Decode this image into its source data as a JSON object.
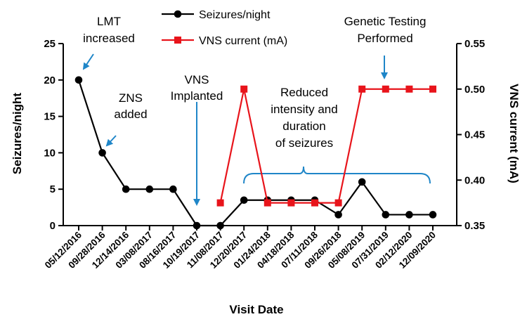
{
  "chart_data": {
    "type": "line",
    "categories": [
      "05/12/2016",
      "09/28/2016",
      "12/14/2016",
      "03/08/2017",
      "08/16/2017",
      "10/19/2017",
      "11/08/2017",
      "12/20/2017",
      "01/24/2018",
      "04/18/2018",
      "07/11/2018",
      "09/26/2018",
      "05/08/2019",
      "07/31/2019",
      "02/12/2020",
      "12/09/2020"
    ],
    "xlabel": "Visit Date",
    "ylabel": "Seizures/night",
    "y2label": "VNS current (mA)",
    "ylim": [
      0,
      25
    ],
    "yticks": [
      "0",
      "5",
      "10",
      "15",
      "20",
      "25"
    ],
    "y2lim": [
      0.35,
      0.55
    ],
    "y2ticks": [
      "0.35",
      "0.40",
      "0.45",
      "0.50",
      "0.55"
    ],
    "series": [
      {
        "name": "Seizures/night",
        "axis": "left",
        "color": "#000000",
        "marker": "circle",
        "values": [
          20,
          10,
          5,
          5,
          5,
          0,
          0,
          3.5,
          3.5,
          3.5,
          3.5,
          1.5,
          6,
          1.5,
          1.5,
          1.5
        ]
      },
      {
        "name": "VNS current (mA)",
        "axis": "right",
        "color": "#e8141b",
        "marker": "square",
        "values": [
          null,
          null,
          null,
          null,
          null,
          null,
          0.375,
          0.5,
          0.375,
          0.375,
          0.375,
          0.375,
          0.5,
          0.5,
          0.5,
          0.5
        ]
      }
    ],
    "annotations": [
      {
        "id": "lmt",
        "lines": [
          "LMT",
          "increased"
        ]
      },
      {
        "id": "zns",
        "lines": [
          "ZNS",
          "added"
        ]
      },
      {
        "id": "vns",
        "lines": [
          "VNS",
          "Implanted"
        ]
      },
      {
        "id": "reduced",
        "lines": [
          "Reduced",
          "intensity and",
          "duration",
          "of seizures"
        ]
      },
      {
        "id": "genetic",
        "lines": [
          "Genetic Testing",
          "Performed"
        ]
      }
    ],
    "annotation_color": "#1f86c8",
    "legend_position": "top"
  }
}
